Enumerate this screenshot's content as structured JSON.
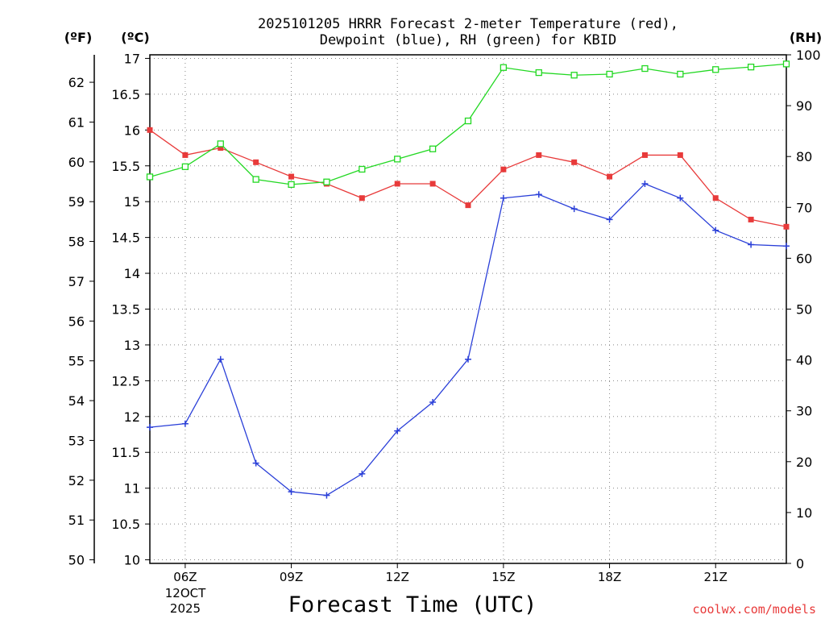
{
  "chart_data": {
    "type": "line",
    "title_line1": "2025101205 HRRR Forecast 2-meter Temperature (red),",
    "title_line2": "Dewpoint (blue), RH (green) for KBID",
    "xlabel": "Forecast Time (UTC)",
    "unit_f": "(ºF)",
    "unit_c": "(ºC)",
    "unit_rh": "(RH)",
    "credit": "coolwx.com/models",
    "date_line1": "12OCT",
    "date_line2": "2025",
    "x_hours": [
      5,
      6,
      7,
      8,
      9,
      10,
      11,
      12,
      13,
      14,
      15,
      16,
      17,
      18,
      19,
      20,
      21,
      22,
      23
    ],
    "x_tick_labels": [
      {
        "hour": 6,
        "label": "06Z"
      },
      {
        "hour": 9,
        "label": "09Z"
      },
      {
        "hour": 12,
        "label": "12Z"
      },
      {
        "hour": 15,
        "label": "15Z"
      },
      {
        "hour": 18,
        "label": "18Z"
      },
      {
        "hour": 21,
        "label": "21Z"
      }
    ],
    "xlim": [
      5,
      23
    ],
    "ylim_c": [
      9.95,
      17.05
    ],
    "y_c_ticks": [
      "10",
      "10.5",
      "11",
      "11.5",
      "12",
      "12.5",
      "13",
      "13.5",
      "14",
      "14.5",
      "15",
      "15.5",
      "16",
      "16.5",
      "17"
    ],
    "y_f_ticks": [
      "50",
      "51",
      "52",
      "53",
      "54",
      "55",
      "56",
      "57",
      "58",
      "59",
      "60",
      "61",
      "62"
    ],
    "ylim_rh": [
      0,
      100
    ],
    "y_rh_ticks": [
      "0",
      "10",
      "20",
      "30",
      "40",
      "50",
      "60",
      "70",
      "80",
      "90",
      "100"
    ],
    "series": [
      {
        "name": "Temperature",
        "unit": "C",
        "color": "#e83a3a",
        "marker": "filled-square",
        "values": [
          16.0,
          15.65,
          15.75,
          15.55,
          15.35,
          15.25,
          15.05,
          15.25,
          15.25,
          14.95,
          15.45,
          15.65,
          15.55,
          15.35,
          15.65,
          15.65,
          15.05,
          14.75,
          14.65
        ]
      },
      {
        "name": "Dewpoint",
        "unit": "C",
        "color": "#2a3fd8",
        "marker": "plus",
        "values": [
          11.85,
          11.9,
          12.8,
          11.35,
          10.95,
          10.9,
          11.2,
          11.8,
          12.2,
          12.8,
          15.05,
          15.1,
          14.9,
          14.75,
          15.25,
          15.05,
          14.6,
          14.4,
          14.38
        ]
      },
      {
        "name": "RH",
        "unit": "%",
        "color": "#22d822",
        "marker": "open-square",
        "values": [
          76,
          78,
          82.5,
          75.5,
          74.5,
          75,
          77.5,
          79.5,
          81.5,
          87,
          97.5,
          96.5,
          96,
          96.2,
          97.3,
          96.2,
          97.1,
          97.6,
          98.2
        ]
      }
    ]
  }
}
